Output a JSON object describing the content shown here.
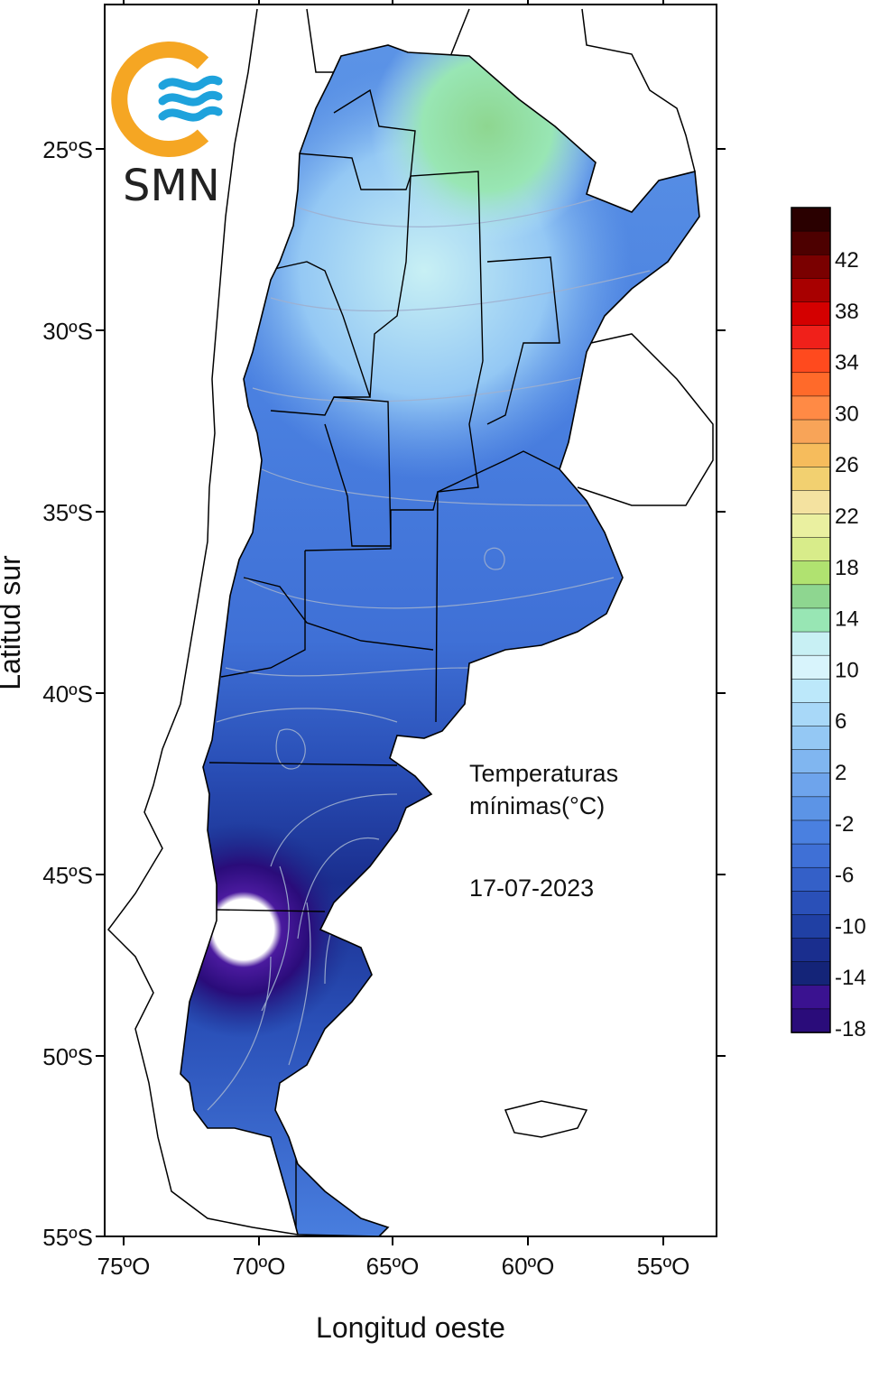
{
  "logo": {
    "text": "SMN",
    "colors": {
      "ring": "#f5a623",
      "waves": "#1ea2dc"
    }
  },
  "map": {
    "axes": {
      "x_title": "Longitud oeste",
      "y_title": "Latitud sur",
      "x_ticks": [
        "75ºO",
        "70ºO",
        "65ºO",
        "60ºO",
        "55ºO"
      ],
      "y_ticks": [
        "25ºS",
        "30ºS",
        "35ºS",
        "40ºS",
        "45ºS",
        "50ºS",
        "55ºS"
      ]
    },
    "annotation": {
      "line1": "Temperaturas",
      "line2": "mínimas(°C)",
      "date": "17-07-2023"
    }
  },
  "legend": {
    "labels": [
      "42",
      "38",
      "34",
      "30",
      "26",
      "22",
      "18",
      "14",
      "10",
      "6",
      "2",
      "-2",
      "-6",
      "-10",
      "-14",
      "-18"
    ],
    "colors": [
      "#2a0000",
      "#4d0000",
      "#7a0000",
      "#a80000",
      "#d40000",
      "#f0201a",
      "#ff4a1e",
      "#ff6a2a",
      "#ff8a45",
      "#f8a458",
      "#f6bc5c",
      "#f2d070",
      "#f4e2a0",
      "#eaf0a0",
      "#d8ec8a",
      "#b0e270",
      "#8ed690",
      "#98e6b4",
      "#c8f0f4",
      "#d8f4fc",
      "#bce8fa",
      "#a8d8f8",
      "#94c8f4",
      "#80b6f0",
      "#6ea4ec",
      "#5c94e6",
      "#4a80e0",
      "#3f70d6",
      "#3460c8",
      "#2a50b8",
      "#2040a4",
      "#1a2e8e",
      "#142478",
      "#3a1290",
      "#2a0c7a"
    ]
  }
}
